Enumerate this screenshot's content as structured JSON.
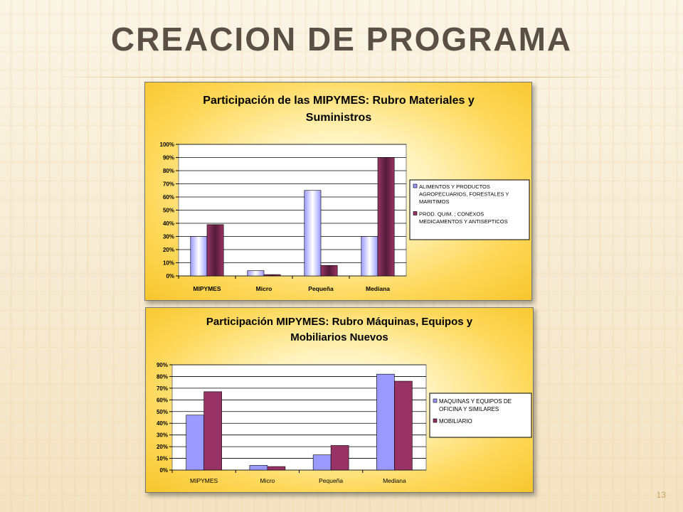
{
  "slide": {
    "title": "CREACION DE PROGRAMA",
    "page_number": "13"
  },
  "chart_data": [
    {
      "type": "bar",
      "title": "Participación de las MIPYMES: Rubro Materiales y Suministros",
      "title_lines": [
        "Participación de las MIPYMES: Rubro Materiales y",
        "Suministros"
      ],
      "categories": [
        "MIPYMES",
        "Micro",
        "Pequeña",
        "Mediana"
      ],
      "series": [
        {
          "name": "ALIMENTOS Y PRODUCTOS AGROPECUARIOS, FORESTALES Y MARITIMOS",
          "legend_lines": [
            "ALIMENTOS Y PRODUCTOS",
            "AGROPECUARIOS, FORESTALES Y",
            "MARITIMOS"
          ],
          "values": [
            30,
            4,
            65,
            30
          ],
          "color": "#9999ff"
        },
        {
          "name": "PROD. QUIM. ; CONEXOS MEDICAMENTOS Y ANTISEPTICOS",
          "legend_lines": [
            "PROD. QUIM. ; CONEXOS",
            "MEDICAMENTOS Y ANTISEPTICOS"
          ],
          "values": [
            39,
            1,
            8,
            90
          ],
          "color": "#993366"
        }
      ],
      "ylim": [
        0,
        100
      ],
      "yticks": [
        "0%",
        "10%",
        "20%",
        "30%",
        "40%",
        "50%",
        "60%",
        "70%",
        "80%",
        "90%",
        "100%"
      ],
      "grid": true,
      "legend": "right"
    },
    {
      "type": "bar",
      "title": "Participación MIPYMES: Rubro Máquinas, Equipos y Mobiliarios Nuevos",
      "title_lines": [
        "Participación MIPYMES: Rubro Máquinas, Equipos y",
        "Mobiliarios Nuevos"
      ],
      "categories": [
        "MIPYMES",
        "Micro",
        "Pequeña",
        "Mediana"
      ],
      "series": [
        {
          "name": "MAQUINAS Y EQUIPOS DE OFICINA Y SIMILARES",
          "legend_lines": [
            "MAQUINAS Y EQUIPOS DE",
            "OFICINA Y SIMILARES"
          ],
          "values": [
            47,
            4,
            13,
            82
          ],
          "color": "#9999ff"
        },
        {
          "name": "MOBILIARIO",
          "legend_lines": [
            "MOBILIARIO"
          ],
          "values": [
            67,
            3,
            21,
            76
          ],
          "color": "#993366"
        }
      ],
      "ylim": [
        0,
        90
      ],
      "yticks": [
        "0%",
        "10%",
        "20%",
        "30%",
        "40%",
        "50%",
        "60%",
        "70%",
        "80%",
        "90%"
      ],
      "grid": true,
      "legend": "right"
    }
  ]
}
